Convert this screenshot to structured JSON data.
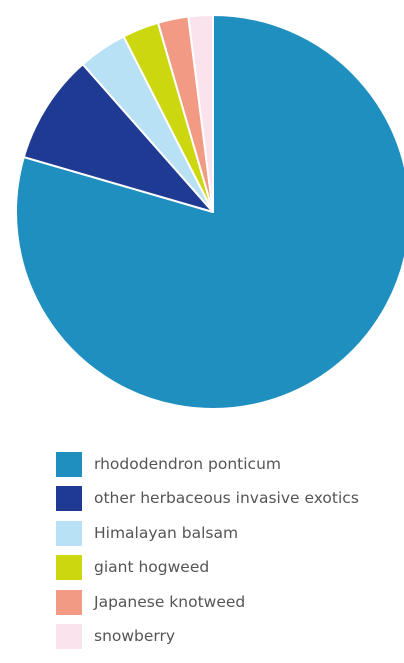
{
  "chart_data": {
    "type": "pie",
    "start_angle": "12 o'clock",
    "direction": "clockwise",
    "legend_position": "bottom",
    "title": "",
    "slices": [
      {
        "label": "rhododendron ponticum",
        "value": 79.5,
        "color": "#1f8fbf"
      },
      {
        "label": "other herbaceous invasive exotics",
        "value": 9.0,
        "color": "#1f3a93"
      },
      {
        "label": "Himalayan balsam",
        "value": 4.0,
        "color": "#b9e1f5"
      },
      {
        "label": "giant hogweed",
        "value": 3.0,
        "color": "#cdd70f"
      },
      {
        "label": "Japanese knotweed",
        "value": 2.5,
        "color": "#f29a83"
      },
      {
        "label": "snowberry",
        "value": 2.0,
        "color": "#fbe3ee"
      }
    ]
  }
}
